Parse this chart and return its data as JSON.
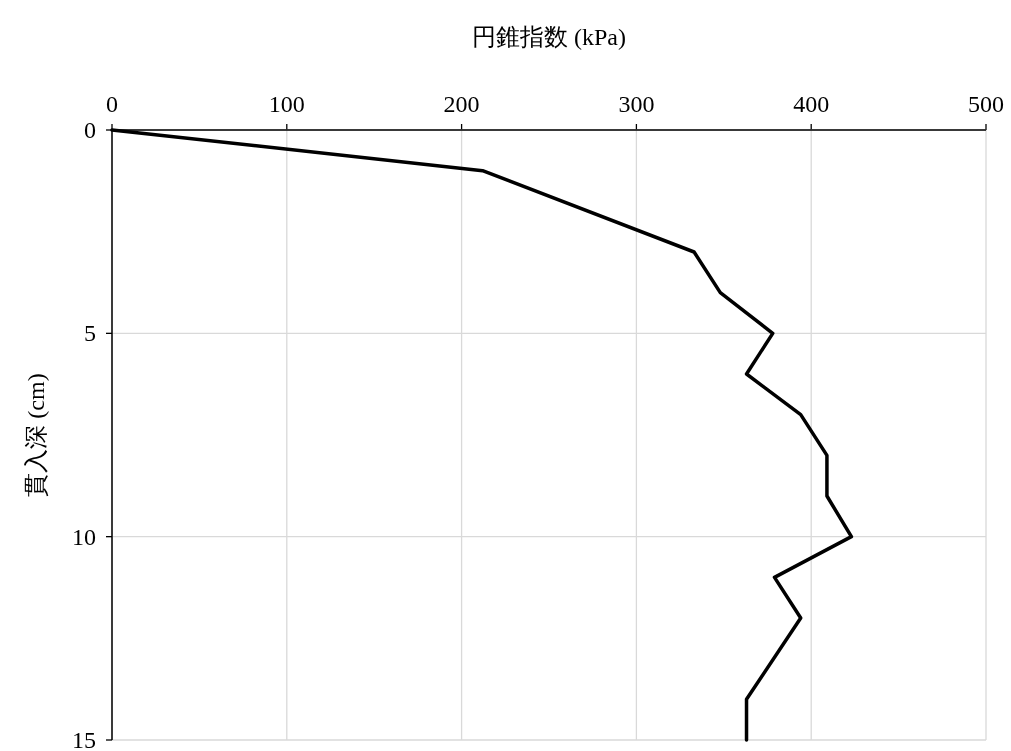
{
  "chart_data": {
    "type": "line",
    "xlabel": "円錐指数 (kPa)",
    "ylabel": "貫入深 (cm)",
    "x": [
      0,
      212,
      333,
      348,
      378,
      363,
      394,
      409,
      409,
      423,
      379,
      394,
      363,
      363
    ],
    "series": [
      {
        "color": "#000000",
        "values": [
          0,
          1,
          3,
          4,
          5,
          6,
          7,
          8,
          9,
          10,
          11,
          12,
          14,
          15
        ]
      }
    ],
    "xlim": [
      0,
      500
    ],
    "xticks": [
      0,
      100,
      200,
      300,
      400,
      500
    ],
    "ylim": [
      15,
      0
    ],
    "yticks": [
      0,
      5,
      10,
      15
    ],
    "grid": true,
    "marker": "none",
    "line_style": "solid"
  }
}
